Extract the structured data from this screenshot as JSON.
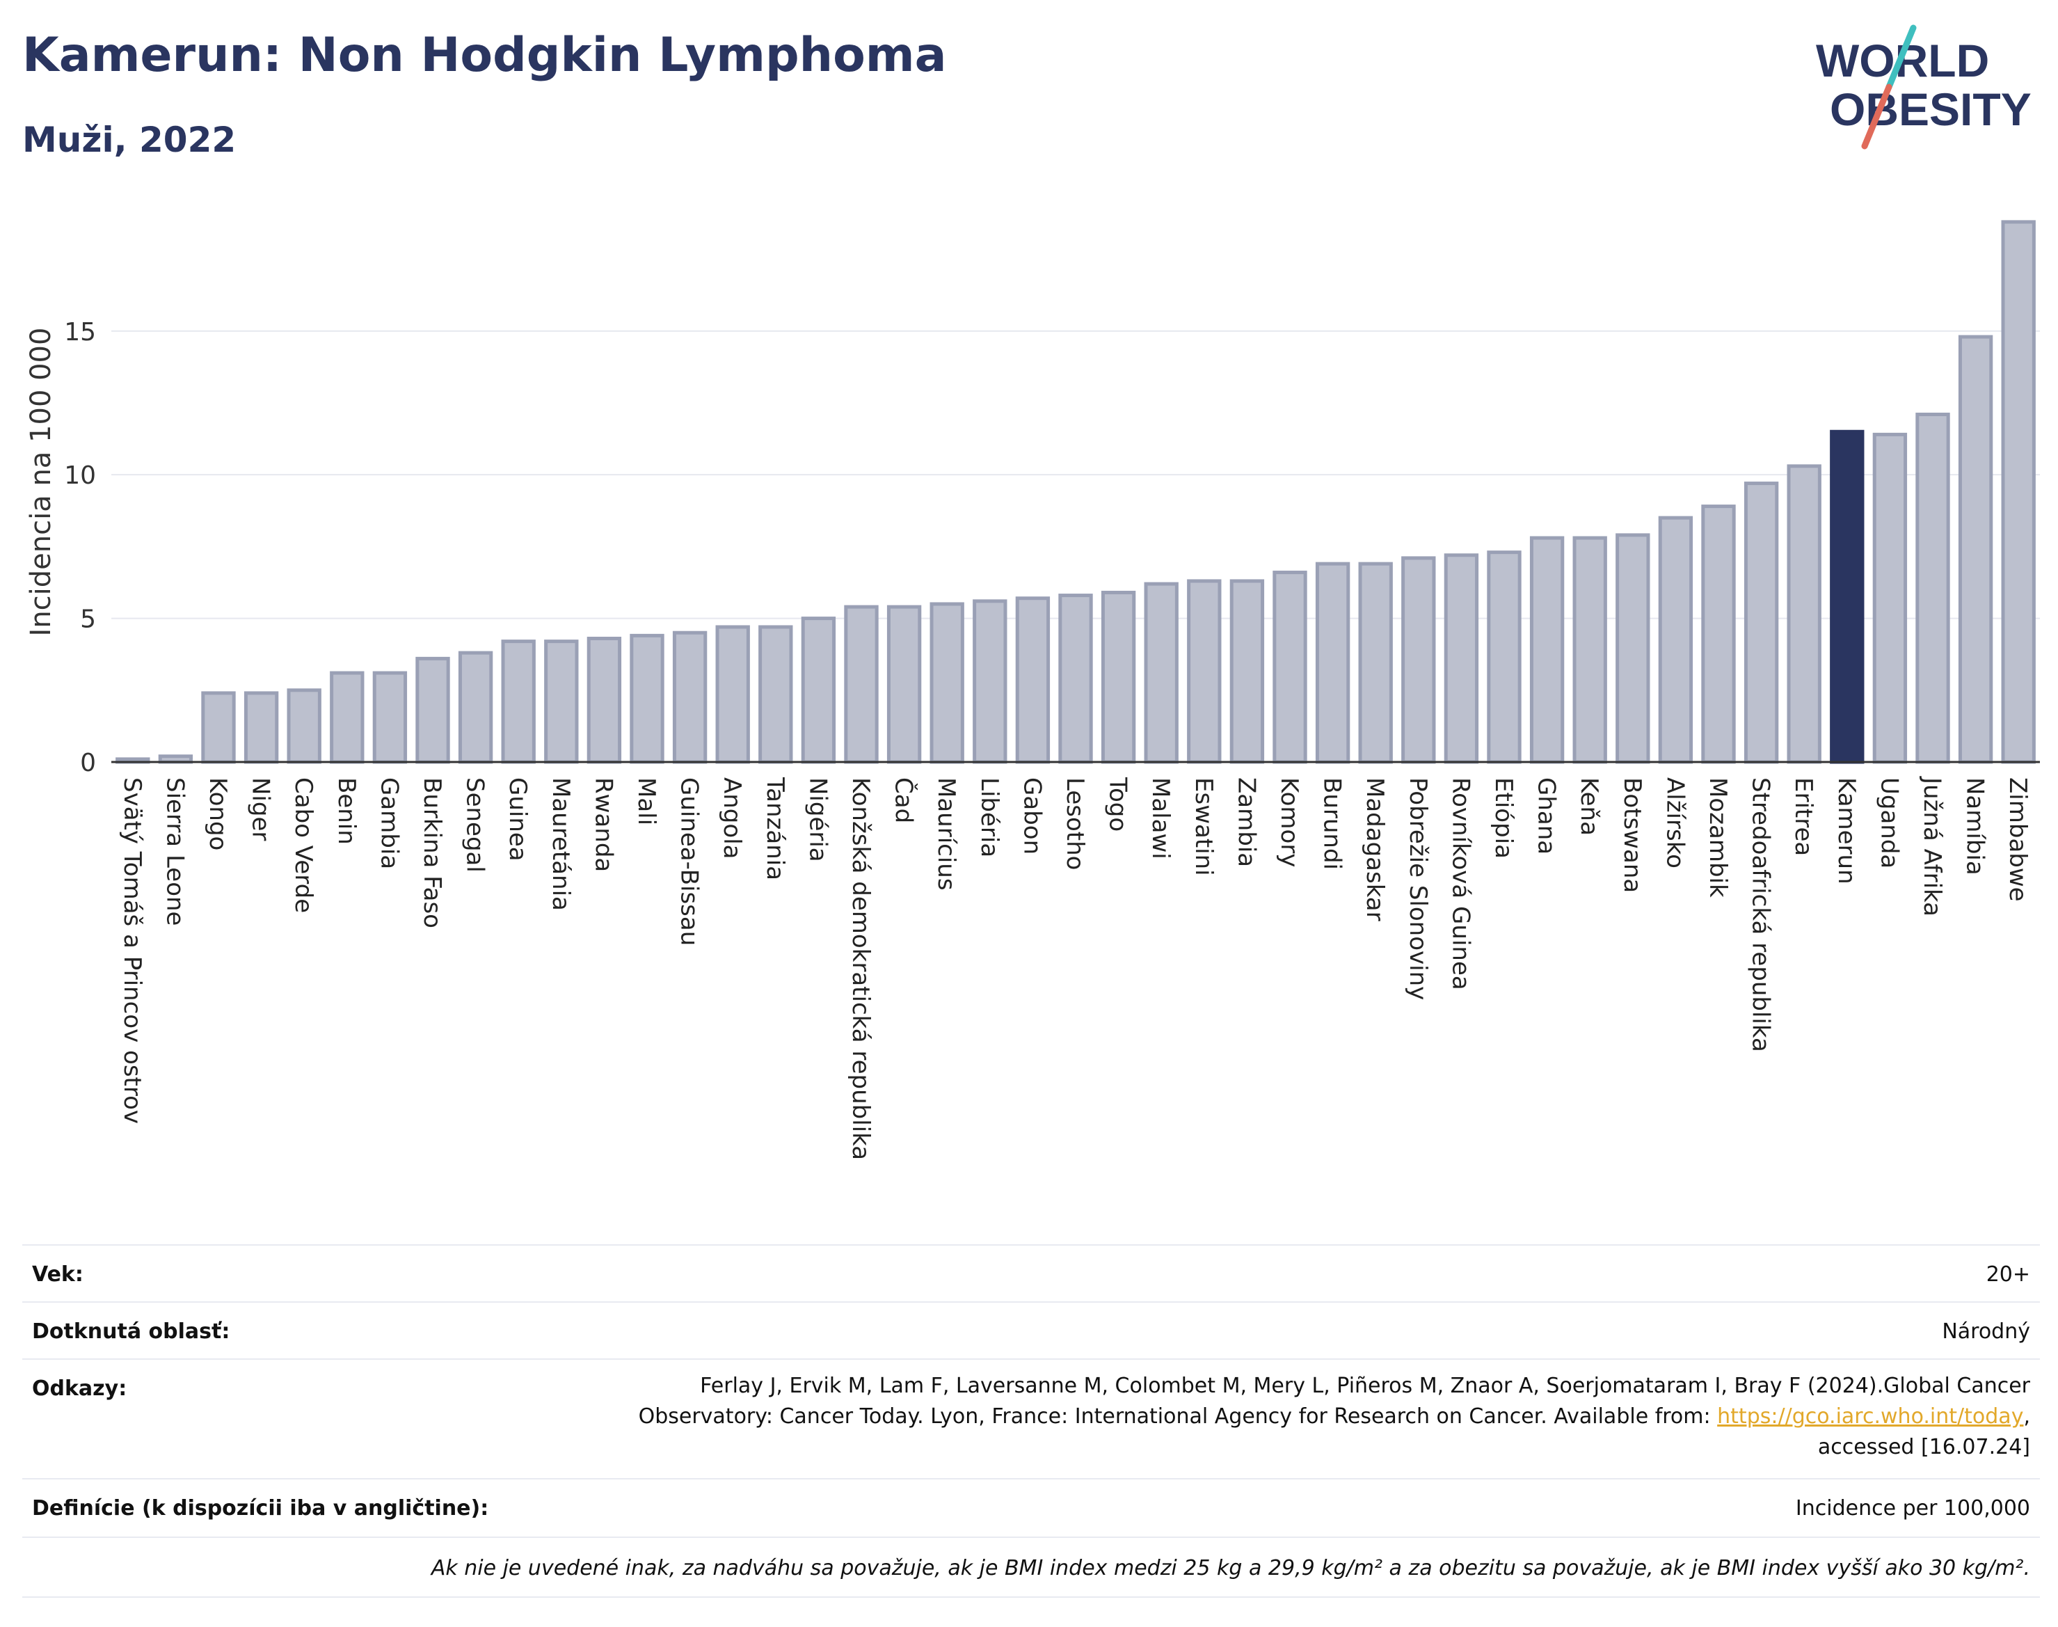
{
  "header": {
    "title": "Kamerun: Non Hodgkin Lymphoma",
    "subtitle": "Muži, 2022"
  },
  "logo": {
    "line1": "WORLD",
    "line2": "OBESITY",
    "accent_colors": [
      "#3fbfbf",
      "#e06a5a"
    ]
  },
  "chart_data": {
    "type": "bar",
    "ylabel": "Incidencia na 100 000",
    "xlabel": "",
    "ylim": [
      0,
      19.5
    ],
    "yticks": [
      0,
      5,
      10,
      15
    ],
    "grid": true,
    "highlight": "Kamerun",
    "colors": {
      "bar": "#bcc0ce",
      "bar_border": "#9aa0b5",
      "highlight": "#2a3560"
    },
    "categories": [
      "Svätý Tomáš a Princov ostrov",
      "Sierra Leone",
      "Kongo",
      "Niger",
      "Cabo Verde",
      "Benin",
      "Gambia",
      "Burkina Faso",
      "Senegal",
      "Guinea",
      "Mauretánia",
      "Rwanda",
      "Mali",
      "Guinea-Bissau",
      "Angola",
      "Tanzánia",
      "Nigéria",
      "Konžská demokratická republika",
      "Čad",
      "Maurícius",
      "Libéria",
      "Gabon",
      "Lesotho",
      "Togo",
      "Malawi",
      "Eswatini",
      "Zambia",
      "Komory",
      "Burundi",
      "Madagaskar",
      "Pobrežie Slonoviny",
      "Rovníková Guinea",
      "Etiópia",
      "Ghana",
      "Keňa",
      "Botswana",
      "Alžírsko",
      "Mozambik",
      "Stredoafrická republika",
      "Eritrea",
      "Kamerun",
      "Uganda",
      "Južná Afrika",
      "Namíbia",
      "Zimbabwe"
    ],
    "values": [
      0.1,
      0.2,
      2.4,
      2.4,
      2.5,
      3.1,
      3.1,
      3.6,
      3.8,
      4.2,
      4.2,
      4.3,
      4.4,
      4.5,
      4.7,
      4.7,
      5.0,
      5.4,
      5.4,
      5.5,
      5.6,
      5.7,
      5.8,
      5.9,
      6.2,
      6.3,
      6.3,
      6.6,
      6.9,
      6.9,
      7.1,
      7.2,
      7.3,
      7.8,
      7.8,
      7.9,
      8.5,
      8.9,
      9.7,
      10.3,
      11.5,
      11.4,
      12.1,
      14.8,
      18.8
    ]
  },
  "info": {
    "age_label": "Vek:",
    "age_value": "20+",
    "area_label": "Dotknutá oblasť:",
    "area_value": "Národný",
    "refs_label": "Odkazy:",
    "refs_line1": "Ferlay J, Ervik M, Lam F, Laversanne M, Colombet M, Mery L, Piñeros M, Znaor A, Soerjomataram I, Bray F (2024).Global Cancer",
    "refs_line2": "Observatory: Cancer Today. Lyon, France: International Agency for Research on Cancer. Available from:",
    "refs_link": "https://gco.iarc.who.int/today",
    "refs_line3": "accessed [16.07.24]",
    "def_label": "Definície (k dispozícii iba v angličtine):",
    "def_value": "Incidence per 100,000",
    "note": "Ak nie je uvedené inak, za nadváhu sa považuje, ak je BMI index medzi 25 kg a 29,9 kg/m² a za obezitu sa považuje, ak je BMI index vyšší ako 30 kg/m²."
  }
}
